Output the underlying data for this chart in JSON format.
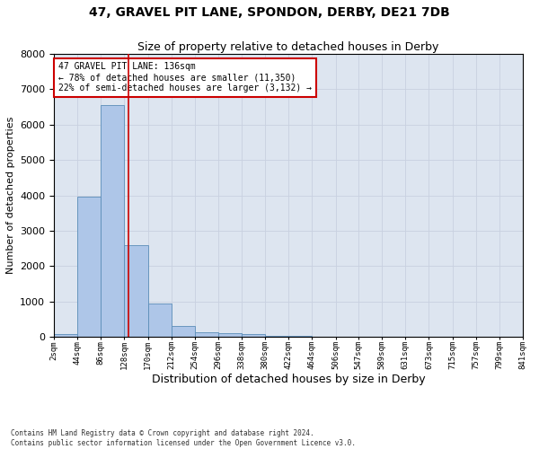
{
  "title": "47, GRAVEL PIT LANE, SPONDON, DERBY, DE21 7DB",
  "subtitle": "Size of property relative to detached houses in Derby",
  "xlabel": "Distribution of detached houses by size in Derby",
  "ylabel": "Number of detached properties",
  "footer_line1": "Contains HM Land Registry data © Crown copyright and database right 2024.",
  "footer_line2": "Contains public sector information licensed under the Open Government Licence v3.0.",
  "annotation_line1": "47 GRAVEL PIT LANE: 136sqm",
  "annotation_line2": "← 78% of detached houses are smaller (11,350)",
  "annotation_line3": "22% of semi-detached houses are larger (3,132) →",
  "bar_color": "#aec6e8",
  "bar_edge_color": "#5b8db8",
  "grid_color": "#c8d0e0",
  "background_color": "#dde5f0",
  "annotation_box_color": "#cc0000",
  "vline_color": "#cc0000",
  "bin_edges": [
    2,
    44,
    86,
    128,
    170,
    212,
    254,
    296,
    338,
    380,
    422,
    464,
    506,
    547,
    589,
    631,
    673,
    715,
    757,
    799,
    841
  ],
  "bin_labels": [
    "2sqm",
    "44sqm",
    "86sqm",
    "128sqm",
    "170sqm",
    "212sqm",
    "254sqm",
    "296sqm",
    "338sqm",
    "380sqm",
    "422sqm",
    "464sqm",
    "506sqm",
    "547sqm",
    "589sqm",
    "631sqm",
    "673sqm",
    "715sqm",
    "757sqm",
    "799sqm",
    "841sqm"
  ],
  "bar_heights": [
    80,
    3950,
    6550,
    2600,
    950,
    300,
    120,
    110,
    80,
    30,
    15,
    5,
    3,
    2,
    1,
    1,
    0,
    0,
    0,
    0
  ],
  "vline_x": 136,
  "ylim": [
    0,
    8000
  ],
  "title_fontsize": 10,
  "subtitle_fontsize": 9,
  "xlabel_fontsize": 9,
  "ylabel_fontsize": 8
}
